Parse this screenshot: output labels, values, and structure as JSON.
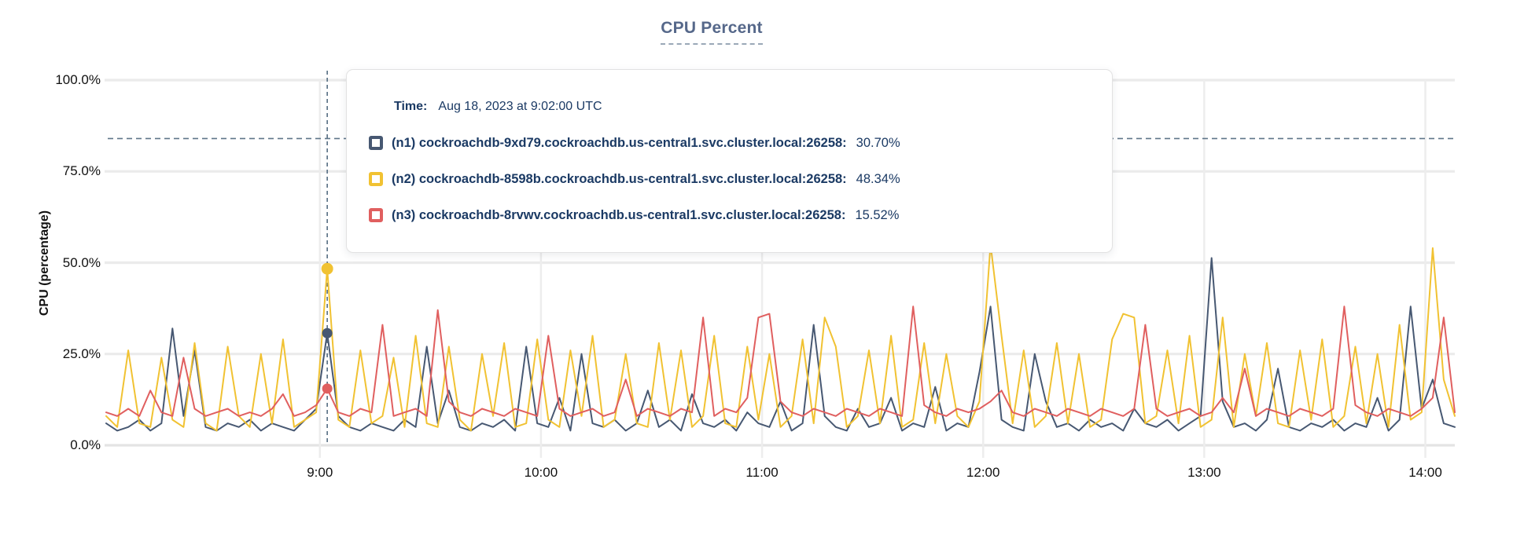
{
  "colors": {
    "n1": "#475872",
    "n2": "#f1c232",
    "n3": "#e05f5f",
    "guide": "#5f7589",
    "grid_h": "#ebebeb",
    "grid_v": "#ededed",
    "axis": "#e4e4e4",
    "title_text": "#56688a",
    "tooltip_text": "#1b3a64"
  },
  "tooltip": {
    "time_label": "Time:",
    "time_value": "Aug 18, 2023 at 9:02:00 UTC",
    "rows": [
      {
        "label": "(n1) cockroachdb-9xd79.cockroachdb.us-central1.svc.cluster.local:26258:",
        "value": "30.70%"
      },
      {
        "label": "(n2) cockroachdb-8598b.cockroachdb.us-central1.svc.cluster.local:26258:",
        "value": "48.34%"
      },
      {
        "label": "(n3) cockroachdb-8rvwv.cockroachdb.us-central1.svc.cluster.local:26258:",
        "value": "15.52%"
      }
    ]
  },
  "chart_data": {
    "type": "line",
    "title": "CPU Percent",
    "ylabel": "CPU (percentage)",
    "ylim": [
      0,
      100
    ],
    "grid": true,
    "time_range": {
      "start": "8:02",
      "end": "14:08",
      "date": "Aug 18, 2023",
      "tz": "UTC"
    },
    "x_step_minutes": 3,
    "x_total_minutes": 366,
    "y_ticks": [
      {
        "label": "100.0%",
        "pct": 100
      },
      {
        "label": "75.0%",
        "pct": 75
      },
      {
        "label": "50.0%",
        "pct": 50
      },
      {
        "label": "25.0%",
        "pct": 25
      },
      {
        "label": "0.0%",
        "pct": 0
      }
    ],
    "x_ticks": [
      {
        "label": "9:00",
        "minute": 58
      },
      {
        "label": "10:00",
        "minute": 118
      },
      {
        "label": "11:00",
        "minute": 178
      },
      {
        "label": "12:00",
        "minute": 238
      },
      {
        "label": "13:00",
        "minute": 298
      },
      {
        "label": "14:00",
        "minute": 358
      }
    ],
    "threshold_pct": 84,
    "hover": {
      "index": 20,
      "time": "Aug 18, 2023 at 9:02:00 UTC",
      "values": [
        30.7,
        48.34,
        15.52
      ]
    },
    "series": [
      {
        "name": "(n1) cockroachdb-9xd79.cockroachdb.us-central1.svc.cluster.local:26258",
        "color_key": "n1",
        "values": [
          6,
          4,
          5,
          7,
          4,
          6,
          32,
          8,
          26,
          5,
          4,
          6,
          5,
          7,
          4,
          6,
          5,
          4,
          7,
          10,
          30.7,
          8,
          5,
          4,
          6,
          5,
          4,
          7,
          5,
          27,
          6,
          15,
          5,
          4,
          6,
          5,
          7,
          4,
          27,
          6,
          5,
          13,
          4,
          25,
          6,
          5,
          7,
          4,
          6,
          15,
          5,
          7,
          4,
          14,
          6,
          5,
          7,
          4,
          9,
          6,
          5,
          12,
          4,
          6,
          33,
          8,
          5,
          4,
          10,
          5,
          6,
          13,
          4,
          6,
          5,
          16,
          4,
          6,
          5,
          20,
          38,
          7,
          5,
          4,
          25,
          12,
          5,
          6,
          4,
          7,
          5,
          6,
          4,
          10,
          6,
          5,
          7,
          4,
          6,
          8,
          51.3,
          12,
          5,
          6,
          4,
          7,
          21,
          5,
          4,
          6,
          5,
          7,
          4,
          6,
          5,
          13,
          4,
          7,
          38,
          10,
          18,
          6,
          5
        ]
      },
      {
        "name": "(n2) cockroachdb-8598b.cockroachdb.us-central1.svc.cluster.local:26258",
        "color_key": "n2",
        "values": [
          8,
          5,
          26,
          6,
          5,
          24,
          7,
          5,
          28,
          6,
          4,
          27,
          8,
          5,
          25,
          6,
          29,
          5,
          7,
          9,
          48.34,
          7,
          5,
          26,
          6,
          8,
          24,
          5,
          30,
          6,
          5,
          27,
          7,
          4,
          25,
          8,
          28,
          5,
          6,
          29,
          7,
          5,
          26,
          8,
          30,
          5,
          7,
          25,
          6,
          5,
          28,
          7,
          26,
          5,
          8,
          30,
          6,
          5,
          27,
          7,
          25,
          5,
          8,
          29,
          6,
          35,
          27,
          5,
          8,
          26,
          6,
          30,
          5,
          7,
          28,
          6,
          25,
          8,
          5,
          12,
          55,
          30,
          6,
          26,
          5,
          8,
          28,
          6,
          25,
          5,
          7,
          29,
          36,
          35,
          6,
          8,
          26,
          6,
          30,
          5,
          7,
          35,
          5,
          25,
          8,
          28,
          6,
          5,
          26,
          7,
          29,
          5,
          8,
          27,
          6,
          25,
          5,
          33,
          7,
          9,
          54,
          18,
          8
        ]
      },
      {
        "name": "(n3) cockroachdb-8rvwv.cockroachdb.us-central1.svc.cluster.local:26258",
        "color_key": "n3",
        "values": [
          9,
          8,
          10,
          8,
          15,
          9,
          8,
          24,
          10,
          8,
          9,
          10,
          8,
          9,
          8,
          10,
          14,
          8,
          9,
          11,
          15.52,
          9,
          8,
          10,
          9,
          33,
          8,
          9,
          10,
          8,
          37,
          12,
          9,
          8,
          10,
          9,
          8,
          10,
          9,
          8,
          30,
          10,
          8,
          9,
          10,
          8,
          9,
          18,
          8,
          10,
          9,
          8,
          10,
          9,
          35,
          8,
          10,
          9,
          13,
          35,
          36,
          12,
          9,
          8,
          10,
          9,
          8,
          10,
          9,
          8,
          10,
          9,
          8,
          38,
          11,
          9,
          8,
          10,
          9,
          10,
          12,
          15,
          9,
          8,
          10,
          9,
          8,
          10,
          9,
          8,
          10,
          9,
          8,
          10,
          33,
          10,
          8,
          9,
          10,
          8,
          9,
          13,
          9,
          21,
          8,
          10,
          9,
          8,
          10,
          9,
          8,
          10,
          38,
          11,
          9,
          8,
          10,
          9,
          8,
          10,
          13,
          35,
          9
        ]
      }
    ]
  }
}
